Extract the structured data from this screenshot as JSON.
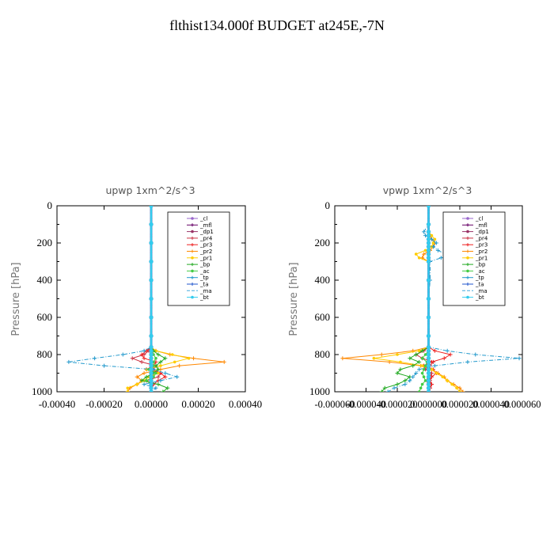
{
  "title": "flthist134.000f  BUDGET at245E,-7N",
  "chart_data": [
    {
      "type": "line",
      "title": "upwp   1xm^2/s^3",
      "ylabel": "Pressure [hPa]",
      "xlabel": "",
      "xlim": [
        -0.0004,
        0.0004
      ],
      "ylim": [
        1000,
        0
      ],
      "xticks": [
        "-0.00040",
        "-0.00020",
        "0.00000",
        "0.00020",
        "0.00040"
      ],
      "yticks": [
        "0",
        "200",
        "400",
        "600",
        "800",
        "1000"
      ],
      "legend_position": "top-right",
      "y": [
        0,
        100,
        200,
        300,
        400,
        500,
        600,
        700,
        760,
        780,
        800,
        820,
        840,
        860,
        880,
        900,
        920,
        940,
        960,
        980,
        1000
      ],
      "series": [
        {
          "name": "_cl",
          "color": "#9966cc",
          "marker": "o",
          "values": [
            0,
            0,
            0,
            0,
            0,
            0,
            0,
            0,
            0,
            0,
            0,
            0,
            0,
            0,
            0,
            0,
            0,
            0,
            0,
            0,
            0
          ]
        },
        {
          "name": "_mfl",
          "color": "#660066",
          "marker": "+",
          "values": [
            0,
            0,
            0,
            0,
            0,
            0,
            0,
            0,
            0,
            0,
            0,
            0,
            0,
            0,
            0,
            0,
            0,
            0,
            0,
            0,
            0
          ]
        },
        {
          "name": "_dp1",
          "color": "#993366",
          "marker": "o",
          "values": [
            0,
            0,
            0,
            0,
            0,
            0,
            0,
            0,
            0,
            0,
            0,
            0,
            0,
            0,
            0,
            0,
            0,
            0,
            0,
            0,
            0
          ]
        },
        {
          "name": "_pr4",
          "color": "#cc3344",
          "marker": "+",
          "values": [
            0,
            0,
            0,
            0,
            0,
            0,
            0,
            0,
            0,
            -1e-05,
            -3e-05,
            -8e-05,
            -4e-05,
            2e-05,
            1e-05,
            4e-05,
            3e-05,
            -2e-05,
            1e-05,
            0,
            0
          ]
        },
        {
          "name": "_pr3",
          "color": "#ee2222",
          "marker": "+",
          "values": [
            0,
            0,
            0,
            0,
            0,
            0,
            0,
            0,
            0,
            -2e-05,
            -4e-05,
            -3e-05,
            2e-05,
            1e-05,
            -2e-05,
            4e-05,
            6e-05,
            3e-05,
            1e-05,
            0,
            0
          ]
        },
        {
          "name": "_pr2",
          "color": "#ff8800",
          "marker": "+",
          "values": [
            0,
            0,
            0,
            0,
            0,
            0,
            0,
            0,
            0,
            2e-05,
            8e-05,
            0.00018,
            0.00031,
            0.00012,
            4e-05,
            -3e-05,
            -6e-05,
            -4e-05,
            -6e-05,
            -9e-05,
            -0.0001
          ]
        },
        {
          "name": "_pr1",
          "color": "#ffcc00",
          "marker": "o",
          "values": [
            0,
            0,
            0,
            0,
            0,
            0,
            0,
            0,
            0,
            2e-05,
            9e-05,
            0.00016,
            0.0001,
            4e-05,
            -2e-05,
            3e-05,
            -1e-05,
            -3e-05,
            -6e-05,
            -0.0001,
            -0.0001
          ]
        },
        {
          "name": "_bp",
          "color": "#22aa22",
          "marker": "+",
          "values": [
            0,
            0,
            0,
            0,
            0,
            0,
            0,
            0,
            0,
            1e-05,
            3e-05,
            6e-05,
            4e-05,
            2e-05,
            3e-05,
            1e-05,
            -2e-05,
            -4e-05,
            3e-05,
            7e-05,
            5e-05
          ]
        },
        {
          "name": "_ac",
          "color": "#44cc44",
          "marker": "o",
          "values": [
            0,
            0,
            0,
            0,
            0,
            0,
            0,
            0,
            0,
            0,
            1e-05,
            2e-05,
            1e-05,
            1e-05,
            -1e-05,
            2e-05,
            1e-05,
            -2e-05,
            0,
            0,
            0
          ]
        },
        {
          "name": "_tp",
          "color": "#2299cc",
          "marker": "+",
          "values": [
            0,
            0,
            0,
            0,
            0,
            0,
            0,
            0,
            0,
            -3e-05,
            -0.00012,
            -0.00024,
            -0.00035,
            -0.0002,
            1e-05,
            6e-05,
            0.00011,
            4e-05,
            -3e-05,
            2e-05,
            0
          ]
        },
        {
          "name": "_ta",
          "color": "#2255cc",
          "marker": "+",
          "values": [
            0,
            0,
            0,
            0,
            0,
            0,
            0,
            0,
            0,
            0,
            0,
            0,
            0,
            0,
            0,
            0,
            0,
            0,
            0,
            0,
            0
          ]
        },
        {
          "name": "_ma",
          "color": "#44aadd",
          "marker": "-",
          "values": [
            0,
            0,
            0,
            0,
            0,
            0,
            0,
            0,
            0,
            0,
            0,
            0,
            0,
            0,
            0,
            0,
            0,
            0,
            0,
            0,
            0
          ]
        },
        {
          "name": "_bt",
          "color": "#33ccee",
          "marker": "o",
          "values": [
            0,
            0,
            0,
            0,
            0,
            0,
            0,
            0,
            0,
            0,
            0,
            0,
            0,
            0,
            0,
            0,
            0,
            0,
            0,
            0,
            0
          ]
        }
      ]
    },
    {
      "type": "line",
      "title": "vpwp   1xm^2/s^3",
      "ylabel": "Pressure [hPa]",
      "xlabel": "",
      "xlim": [
        -6e-05,
        6e-05
      ],
      "ylim": [
        1000,
        0
      ],
      "xticks": [
        "-0.000060",
        "-0.000040",
        "-0.000020",
        "0.000000",
        "0.000020",
        "0.000040",
        "0.000060"
      ],
      "yticks": [
        "0",
        "200",
        "400",
        "600",
        "800",
        "1000"
      ],
      "legend_position": "top-right",
      "y": [
        0,
        100,
        140,
        160,
        180,
        200,
        220,
        240,
        260,
        280,
        300,
        400,
        500,
        600,
        700,
        760,
        780,
        800,
        820,
        840,
        860,
        880,
        900,
        920,
        940,
        960,
        980,
        1000
      ],
      "series": [
        {
          "name": "_cl",
          "color": "#9966cc",
          "marker": "o",
          "values": [
            0,
            0,
            0,
            0,
            0,
            0,
            0,
            0,
            0,
            0,
            0,
            0,
            0,
            0,
            0,
            0,
            0,
            0,
            0,
            0,
            0,
            0,
            0,
            0,
            0,
            0,
            0,
            0
          ]
        },
        {
          "name": "_mfl",
          "color": "#660066",
          "marker": "+",
          "values": [
            0,
            0,
            0,
            0,
            0,
            0,
            0,
            0,
            0,
            0,
            0,
            0,
            0,
            0,
            0,
            0,
            0,
            0,
            0,
            0,
            0,
            0,
            0,
            0,
            0,
            0,
            0,
            0
          ]
        },
        {
          "name": "_dp1",
          "color": "#993366",
          "marker": "o",
          "values": [
            0,
            0,
            0,
            0,
            0,
            0,
            0,
            0,
            0,
            0,
            0,
            0,
            0,
            0,
            0,
            0,
            0,
            0,
            0,
            0,
            0,
            0,
            0,
            0,
            0,
            0,
            0,
            0
          ]
        },
        {
          "name": "_pr4",
          "color": "#cc3344",
          "marker": "+",
          "values": [
            0,
            0,
            0,
            0,
            0,
            0,
            0,
            0,
            0,
            0,
            0,
            0,
            0,
            0,
            0,
            0,
            -3e-06,
            -8e-06,
            -4e-06,
            3e-06,
            1e-06,
            -2e-06,
            2e-06,
            1e-06,
            -1e-06,
            2e-06,
            1e-06,
            0
          ]
        },
        {
          "name": "_pr3",
          "color": "#ee2222",
          "marker": "+",
          "values": [
            0,
            0,
            0,
            0,
            0,
            0,
            0,
            0,
            0,
            0,
            0,
            0,
            0,
            0,
            0,
            0,
            4e-06,
            1.4e-05,
            1e-05,
            2e-06,
            -3e-06,
            3e-06,
            5e-06,
            2e-06,
            1e-06,
            2e-06,
            1e-06,
            0
          ]
        },
        {
          "name": "_pr2",
          "color": "#ff8800",
          "marker": "+",
          "values": [
            0,
            0,
            0,
            1e-06,
            2e-06,
            4e-06,
            3e-06,
            1e-06,
            -3e-06,
            -4e-06,
            0,
            0,
            0,
            0,
            0,
            0,
            -1e-05,
            -3e-05,
            -5.5e-05,
            -2.5e-05,
            -5e-06,
            2e-06,
            6e-06,
            1e-05,
            1.2e-05,
            1.6e-05,
            2e-05,
            2.2e-05
          ]
        },
        {
          "name": "_pr1",
          "color": "#ffcc00",
          "marker": "o",
          "values": [
            0,
            0,
            0,
            2e-06,
            4e-06,
            3e-06,
            2e-06,
            -2e-06,
            -8e-06,
            -6e-06,
            0,
            0,
            0,
            0,
            0,
            0,
            -6e-06,
            -2e-05,
            -3.5e-05,
            -1.8e-05,
            -4e-06,
            2e-06,
            5e-06,
            9e-06,
            1.2e-05,
            1.5e-05,
            1.8e-05,
            2e-05
          ]
        },
        {
          "name": "_bp",
          "color": "#22aa22",
          "marker": "+",
          "values": [
            0,
            0,
            0,
            0,
            0,
            0,
            0,
            0,
            0,
            0,
            0,
            0,
            0,
            0,
            0,
            0,
            -4e-06,
            -8e-06,
            -1.2e-05,
            -6e-06,
            -1e-05,
            -1.8e-05,
            -2e-05,
            -1.2e-05,
            -1.5e-05,
            -2e-05,
            -2.8e-05,
            -3e-05
          ]
        },
        {
          "name": "_ac",
          "color": "#44cc44",
          "marker": "o",
          "values": [
            0,
            0,
            0,
            0,
            0,
            0,
            0,
            0,
            0,
            0,
            0,
            0,
            0,
            0,
            0,
            0,
            0,
            -2e-06,
            -4e-06,
            -1e-06,
            -2e-06,
            -3e-06,
            -4e-06,
            -3e-06,
            -2e-06,
            -4e-06,
            -5e-06,
            -6e-06
          ]
        },
        {
          "name": "_tp",
          "color": "#2299cc",
          "marker": "+",
          "values": [
            0,
            0,
            -3e-06,
            -2e-06,
            2e-06,
            5e-06,
            3e-06,
            6e-06,
            1.1e-05,
            8e-06,
            1e-06,
            1e-06,
            0,
            0,
            0,
            0,
            1.2e-05,
            3e-05,
            5.8e-05,
            2.5e-05,
            4e-06,
            -6e-06,
            -8e-06,
            -1e-05,
            -1.2e-05,
            -1.5e-05,
            -2.2e-05,
            -2.6e-05
          ]
        },
        {
          "name": "_ta",
          "color": "#2255cc",
          "marker": "+",
          "values": [
            0,
            0,
            0,
            0,
            0,
            0,
            0,
            0,
            0,
            0,
            0,
            0,
            0,
            0,
            0,
            0,
            0,
            0,
            0,
            0,
            0,
            0,
            0,
            0,
            0,
            0,
            0,
            0
          ]
        },
        {
          "name": "_ma",
          "color": "#44aadd",
          "marker": "-",
          "values": [
            0,
            0,
            0,
            0,
            0,
            0,
            0,
            0,
            0,
            0,
            0,
            0,
            0,
            0,
            0,
            0,
            0,
            0,
            0,
            0,
            0,
            0,
            0,
            0,
            0,
            0,
            0,
            0
          ]
        },
        {
          "name": "_bt",
          "color": "#33ccee",
          "marker": "o",
          "values": [
            0,
            0,
            0,
            0,
            0,
            0,
            0,
            0,
            0,
            0,
            0,
            0,
            0,
            0,
            0,
            0,
            0,
            0,
            0,
            0,
            0,
            0,
            0,
            0,
            0,
            0,
            0,
            0
          ]
        }
      ]
    }
  ]
}
